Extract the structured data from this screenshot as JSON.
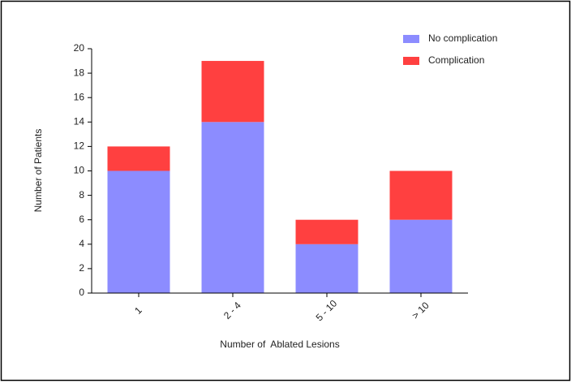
{
  "chart_data": {
    "type": "stacked_bar",
    "x_label": "Number of  Ablated Lesions",
    "y_label": "Number of Patients",
    "categories": [
      "1",
      "2 - 4",
      "5 - 10",
      "> 10"
    ],
    "series": [
      {
        "name": "No complication",
        "color": "#8c8cff",
        "values": [
          10,
          14,
          4,
          6
        ]
      },
      {
        "name": "Complication",
        "color": "#ff4040",
        "values": [
          2,
          5,
          2,
          4
        ]
      }
    ],
    "ylim": [
      0,
      20
    ],
    "yticks": [
      0,
      2,
      4,
      6,
      8,
      10,
      12,
      14,
      16,
      18,
      20
    ],
    "legend": "top-right"
  }
}
